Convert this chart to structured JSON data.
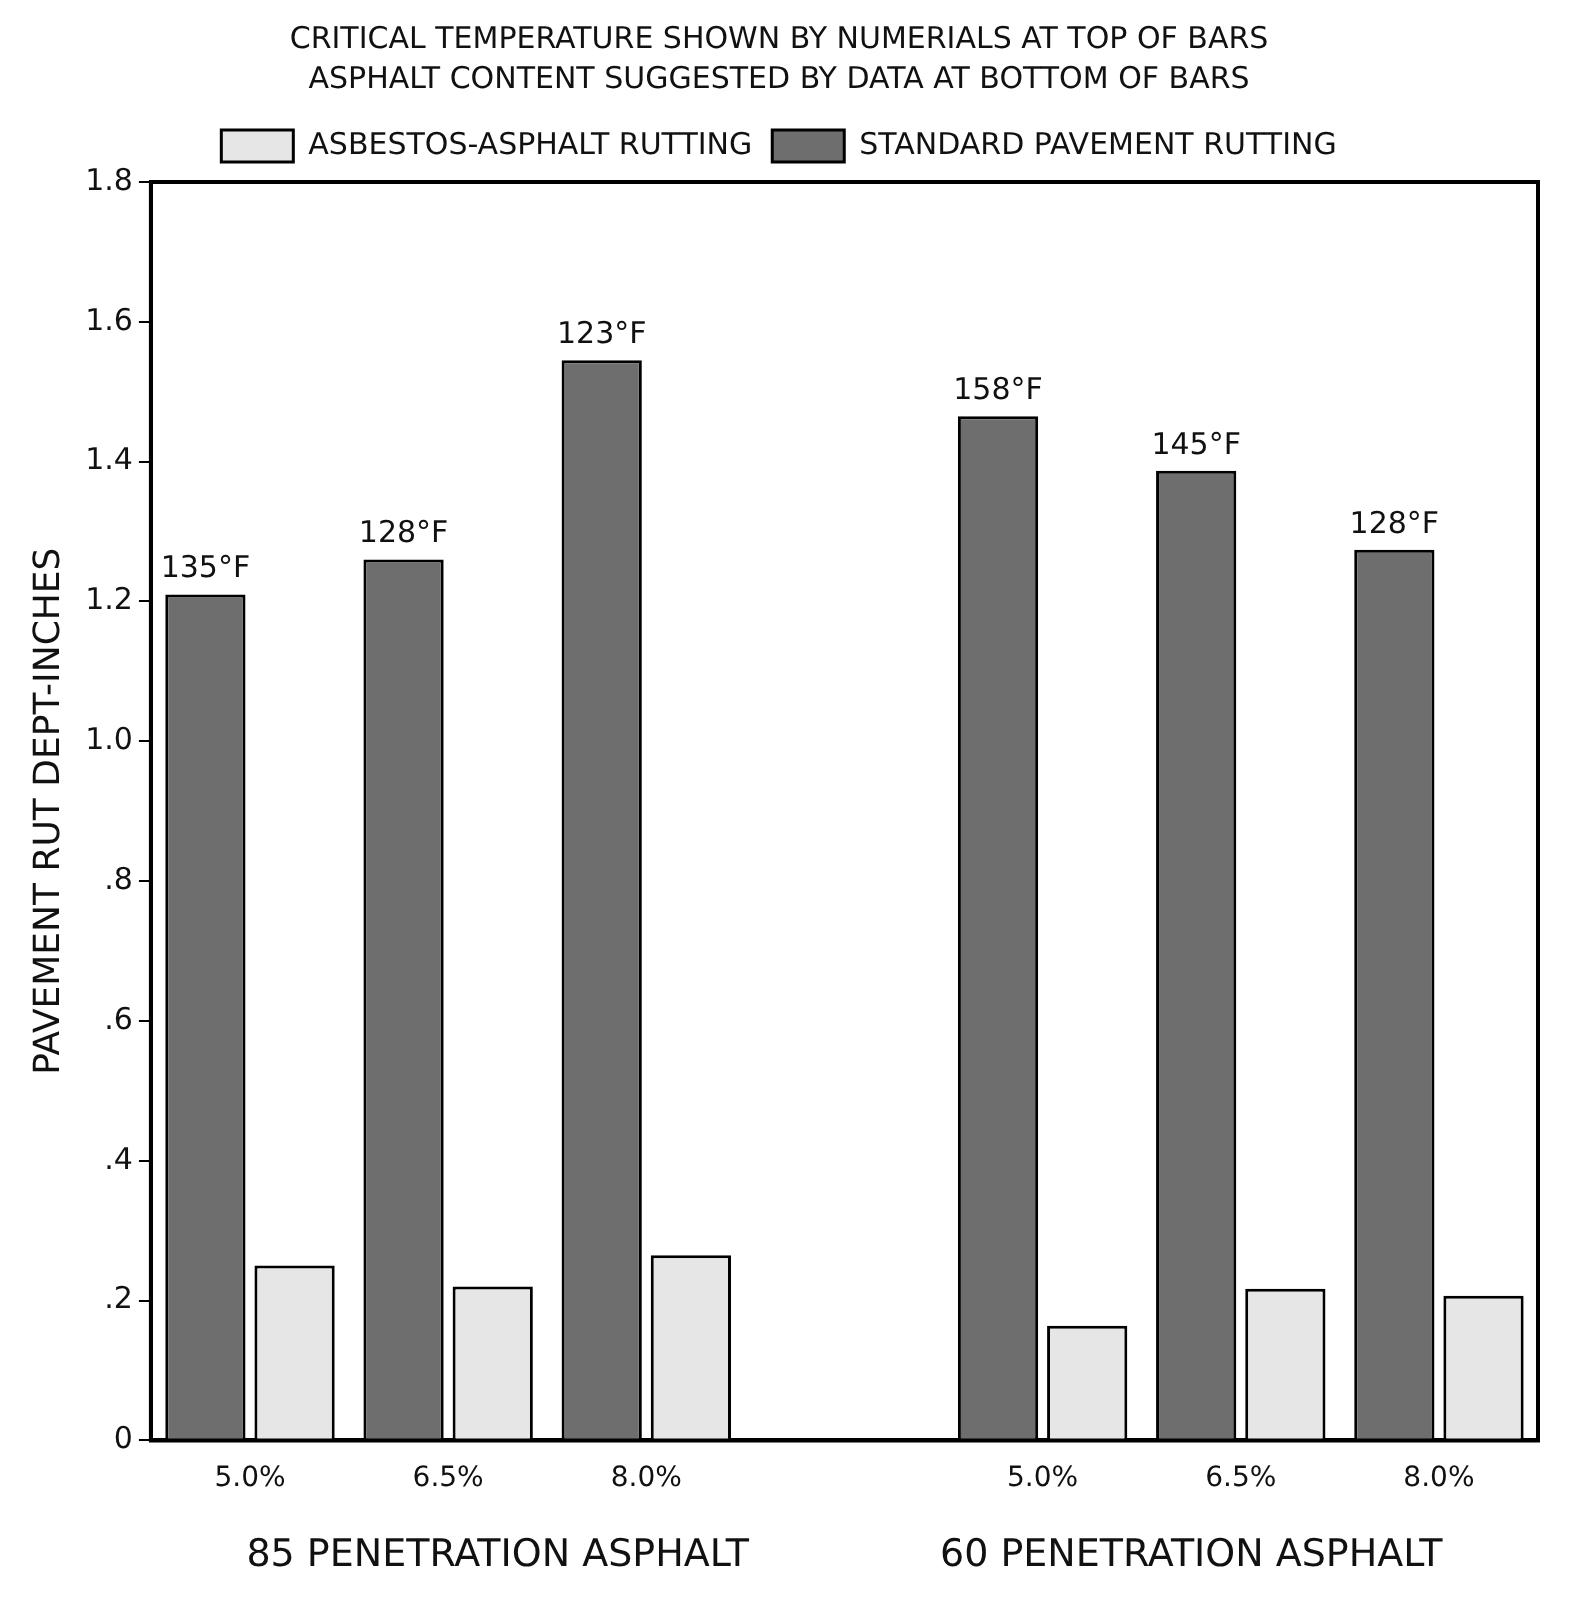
{
  "chart_data": {
    "type": "bar",
    "title": "CRITICAL TEMPERATURE SHOWN BY NUMERIALS AT TOP OF BARS",
    "subtitle": "ASPHALT CONTENT SUGGESTED BY DATA AT BOTTOM OF BARS",
    "ylabel": "PAVEMENT RUT DEPT-INCHES",
    "categories": [
      "5.0%",
      "6.5%",
      "8.0%",
      null,
      "5.0%",
      "6.5%",
      "8.0%"
    ],
    "series": [
      {
        "name": "STANDARD PAVEMENT RUTTING",
        "color": "#6e6e6e",
        "values": [
          1.21,
          1.26,
          1.545,
          null,
          1.465,
          1.387,
          1.274
        ]
      },
      {
        "name": "ASBESTOS-ASPHALT RUTTING",
        "color": "#e6e6e6",
        "values": [
          0.25,
          0.22,
          0.265,
          null,
          0.164,
          0.217,
          0.207
        ]
      }
    ],
    "ylim": [
      0,
      1.8
    ],
    "yticks": [
      {
        "value": 0,
        "label": "0"
      },
      {
        "value": 0.2,
        "label": ".2"
      },
      {
        "value": 0.4,
        "label": ".4"
      },
      {
        "value": 0.6,
        "label": ".6"
      },
      {
        "value": 0.8,
        "label": ".8"
      },
      {
        "value": 1.0,
        "label": "1.0"
      },
      {
        "value": 1.2,
        "label": "1.2"
      },
      {
        "value": 1.4,
        "label": "1.4"
      },
      {
        "value": 1.6,
        "label": "1.6"
      },
      {
        "value": 1.8,
        "label": "1.8"
      }
    ],
    "grid": false,
    "legend": "top",
    "annotations": [
      "135°F",
      "128°F",
      "123°F",
      "158°F",
      "145°F",
      "128°F",
      "85 PENETRATION ASPHALT",
      "60 PENETRATION ASPHALT"
    ]
  }
}
